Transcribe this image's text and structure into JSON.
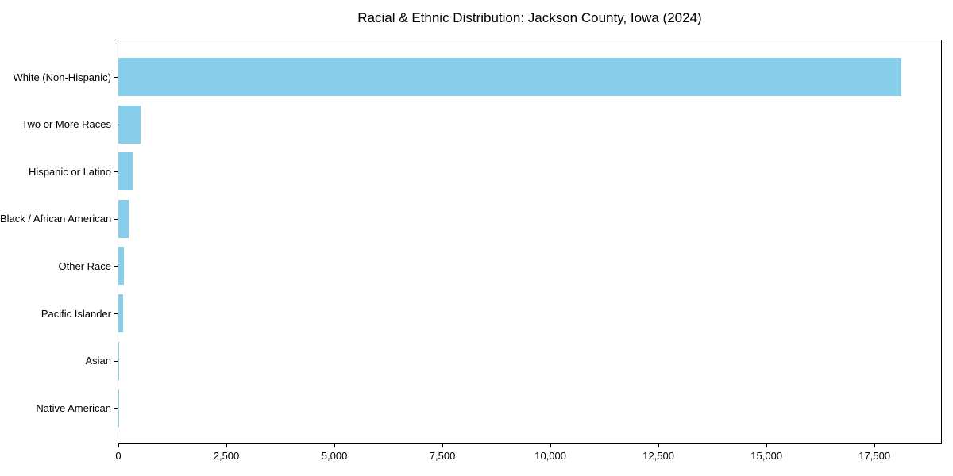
{
  "chart_data": {
    "type": "bar",
    "orientation": "horizontal",
    "title": "Racial & Ethnic Distribution: Jackson County, Iowa (2024)",
    "categories": [
      "White (Non-Hispanic)",
      "Two or More Races",
      "Hispanic or Latino",
      "Black / African American",
      "Other Race",
      "Pacific Islander",
      "Asian",
      "Native American"
    ],
    "values": [
      18130,
      520,
      335,
      230,
      130,
      105,
      20,
      5
    ],
    "xlabel": "",
    "ylabel": "",
    "xlim": [
      0,
      19040
    ],
    "xticks": [
      0,
      2500,
      5000,
      7500,
      10000,
      12500,
      15000,
      17500
    ],
    "xtick_labels": [
      "0",
      "2,500",
      "5,000",
      "7,500",
      "10,000",
      "12,500",
      "15,000",
      "17,500"
    ],
    "bar_color": "#87CEEB",
    "axis_color": "#000000",
    "grid": false,
    "legend": null
  }
}
